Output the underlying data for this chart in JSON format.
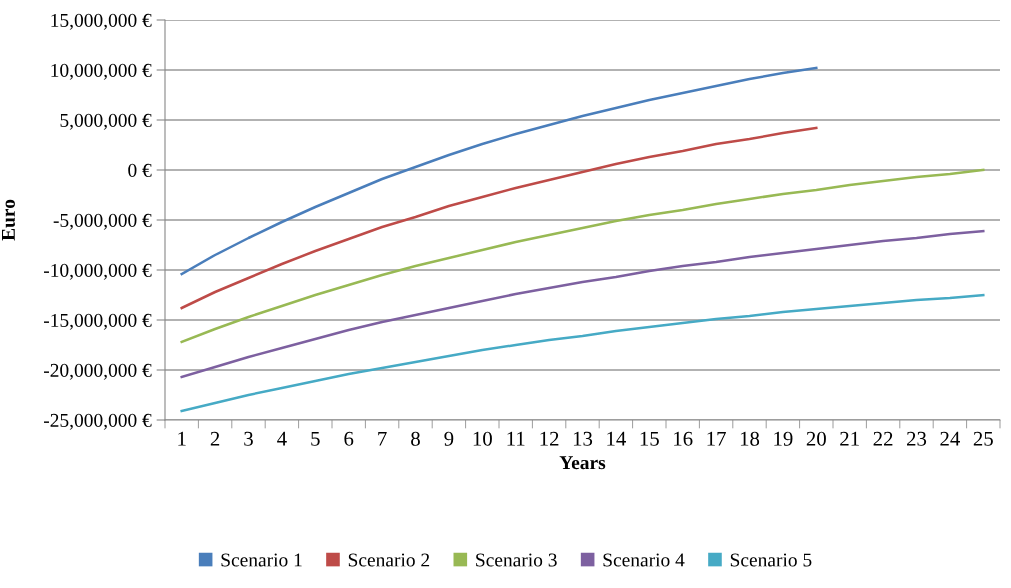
{
  "chart_data": {
    "type": "line",
    "xlabel": "Years",
    "ylabel": "Euro",
    "categories": [
      "1",
      "2",
      "3",
      "4",
      "5",
      "6",
      "7",
      "8",
      "9",
      "10",
      "11",
      "12",
      "13",
      "14",
      "15",
      "16",
      "17",
      "18",
      "19",
      "20",
      "21",
      "22",
      "23",
      "24",
      "25"
    ],
    "series": [
      {
        "name": "Scenario 1",
        "color": "#4a7ebb",
        "values": [
          -10400000,
          -8500000,
          -6800000,
          -5200000,
          -3700000,
          -2300000,
          -900000,
          300000,
          1500000,
          2600000,
          3600000,
          4500000,
          5400000,
          6200000,
          7000000,
          7700000,
          8400000,
          9100000,
          9700000,
          10200000,
          null,
          null,
          null,
          null,
          null
        ]
      },
      {
        "name": "Scenario 2",
        "color": "#be4b48",
        "values": [
          -13800000,
          -12200000,
          -10800000,
          -9400000,
          -8100000,
          -6900000,
          -5700000,
          -4700000,
          -3600000,
          -2700000,
          -1800000,
          -1000000,
          -200000,
          600000,
          1300000,
          1900000,
          2600000,
          3100000,
          3700000,
          4200000,
          null,
          null,
          null,
          null,
          null
        ]
      },
      {
        "name": "Scenario 3",
        "color": "#98b954",
        "values": [
          -17200000,
          -15900000,
          -14700000,
          -13600000,
          -12500000,
          -11500000,
          -10500000,
          -9600000,
          -8800000,
          -8000000,
          -7200000,
          -6500000,
          -5800000,
          -5100000,
          -4500000,
          -4000000,
          -3400000,
          -2900000,
          -2400000,
          -2000000,
          -1500000,
          -1100000,
          -700000,
          -400000,
          0
        ]
      },
      {
        "name": "Scenario 4",
        "color": "#7d60a0",
        "values": [
          -20700000,
          -19700000,
          -18700000,
          -17800000,
          -16900000,
          -16000000,
          -15200000,
          -14500000,
          -13800000,
          -13100000,
          -12400000,
          -11800000,
          -11200000,
          -10700000,
          -10100000,
          -9600000,
          -9200000,
          -8700000,
          -8300000,
          -7900000,
          -7500000,
          -7100000,
          -6800000,
          -6400000,
          -6100000
        ]
      },
      {
        "name": "Scenario 5",
        "color": "#46aac5",
        "values": [
          -24100000,
          -23300000,
          -22500000,
          -21800000,
          -21100000,
          -20400000,
          -19800000,
          -19200000,
          -18600000,
          -18000000,
          -17500000,
          -17000000,
          -16600000,
          -16100000,
          -15700000,
          -15300000,
          -14900000,
          -14600000,
          -14200000,
          -13900000,
          -13600000,
          -13300000,
          -13000000,
          -12800000,
          -12500000
        ]
      }
    ],
    "ylim": [
      -25000000,
      15000000
    ],
    "yticks": [
      {
        "value": -25000000,
        "label": "-25,000,000 €"
      },
      {
        "value": -20000000,
        "label": "-20,000,000 €"
      },
      {
        "value": -15000000,
        "label": "-15,000,000 €"
      },
      {
        "value": -10000000,
        "label": "-10,000,000 €"
      },
      {
        "value": -5000000,
        "label": "-5,000,000 €"
      },
      {
        "value": 0,
        "label": "0 €"
      },
      {
        "value": 5000000,
        "label": "5,000,000 €"
      },
      {
        "value": 10000000,
        "label": "10,000,000 €"
      },
      {
        "value": 15000000,
        "label": "15,000,000 €"
      }
    ],
    "grid": "y",
    "legend": "bottom",
    "marker": "none",
    "line_style": "solid"
  }
}
